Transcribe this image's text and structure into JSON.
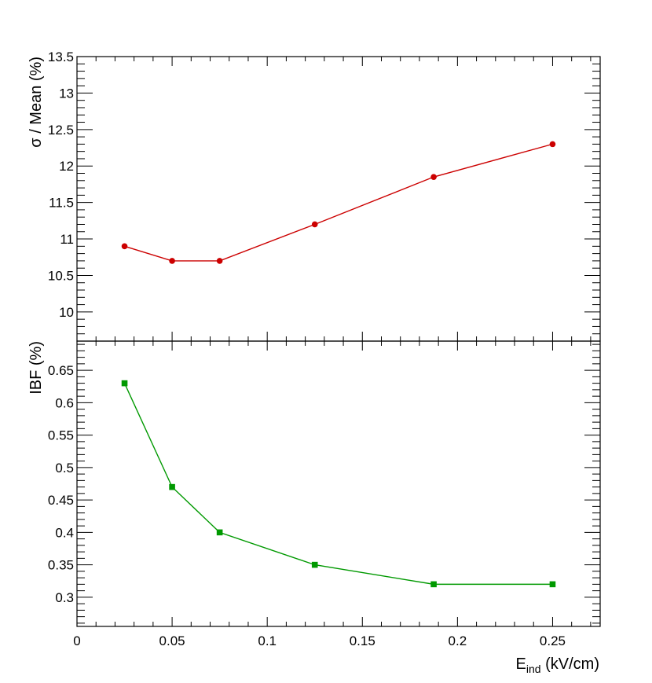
{
  "chart_data": [
    {
      "type": "line",
      "ylabel": "σ / Mean (%)",
      "xlim": [
        0,
        0.275
      ],
      "ylim": [
        9.6,
        13.5
      ],
      "yticks": [
        10,
        10.5,
        11,
        11.5,
        12,
        12.5,
        13,
        13.5
      ],
      "ytick_labels": [
        "10",
        "10.5",
        "11",
        "11.5",
        "12",
        "12.5",
        "13",
        "13.5"
      ],
      "marker": "circle",
      "color": "#cc0000",
      "series": [
        {
          "x": [
            0.025,
            0.05,
            0.075,
            0.125,
            0.1875,
            0.25
          ],
          "values": [
            10.9,
            10.7,
            10.7,
            11.2,
            11.85,
            12.3
          ]
        }
      ]
    },
    {
      "type": "line",
      "ylabel": "IBF (%)",
      "xlabel_main": "E",
      "xlabel_sub": "ind",
      "xlabel_unit": " (kV/cm)",
      "xlim": [
        0,
        0.275
      ],
      "ylim": [
        0.255,
        0.695
      ],
      "yticks": [
        0.3,
        0.35,
        0.4,
        0.45,
        0.5,
        0.55,
        0.6,
        0.65
      ],
      "ytick_labels": [
        "0.3",
        "0.35",
        "0.4",
        "0.45",
        "0.5",
        "0.55",
        "0.6",
        "0.65"
      ],
      "xticks": [
        0,
        0.05,
        0.1,
        0.15,
        0.2,
        0.25
      ],
      "xtick_labels": [
        "0",
        "0.05",
        "0.1",
        "0.15",
        "0.2",
        "0.25"
      ],
      "marker": "square",
      "color": "#009900",
      "series": [
        {
          "x": [
            0.025,
            0.05,
            0.075,
            0.125,
            0.1875,
            0.25
          ],
          "values": [
            0.63,
            0.47,
            0.4,
            0.35,
            0.32,
            0.32
          ]
        }
      ]
    }
  ]
}
